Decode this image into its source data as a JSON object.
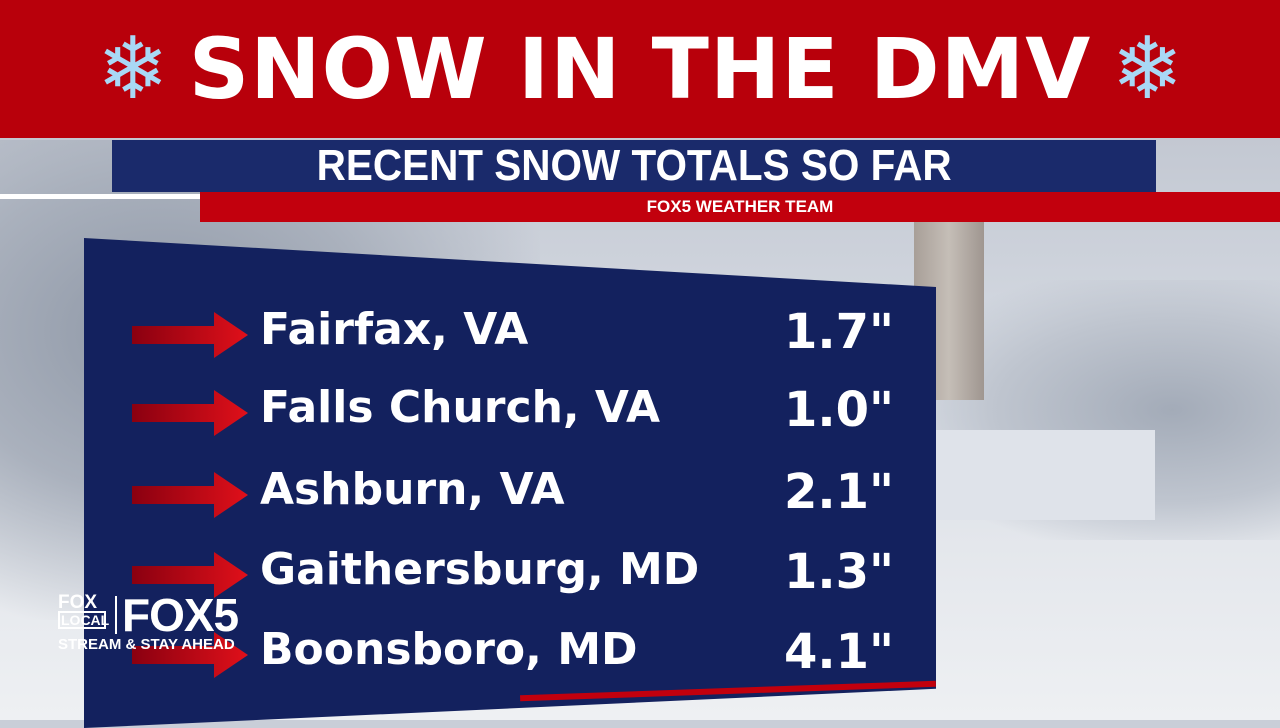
{
  "header": {
    "title": "SNOW IN THE DMV",
    "icon": "snowflake-icon",
    "color": "#b8000b"
  },
  "subtitle": "RECENT SNOW TOTALS SO FAR",
  "team_bar": "FOX5 WEATHER TEAM",
  "totals": [
    {
      "location": "Fairfax, VA",
      "amount": "1.7\""
    },
    {
      "location": "Falls Church, VA",
      "amount": "1.0\""
    },
    {
      "location": "Ashburn, VA",
      "amount": "2.1\""
    },
    {
      "location": "Gaithersburg, MD",
      "amount": "1.3\""
    },
    {
      "location": "Boonsboro, MD",
      "amount": "4.1\""
    }
  ],
  "logo": {
    "fox": "FOX",
    "local": "LOCAL",
    "fox5": "FOX5",
    "tagline": "STREAM & STAY AHEAD"
  },
  "colors": {
    "panel": "#13215e",
    "accent_red": "#c2000d",
    "arrow": "#e0101a"
  }
}
